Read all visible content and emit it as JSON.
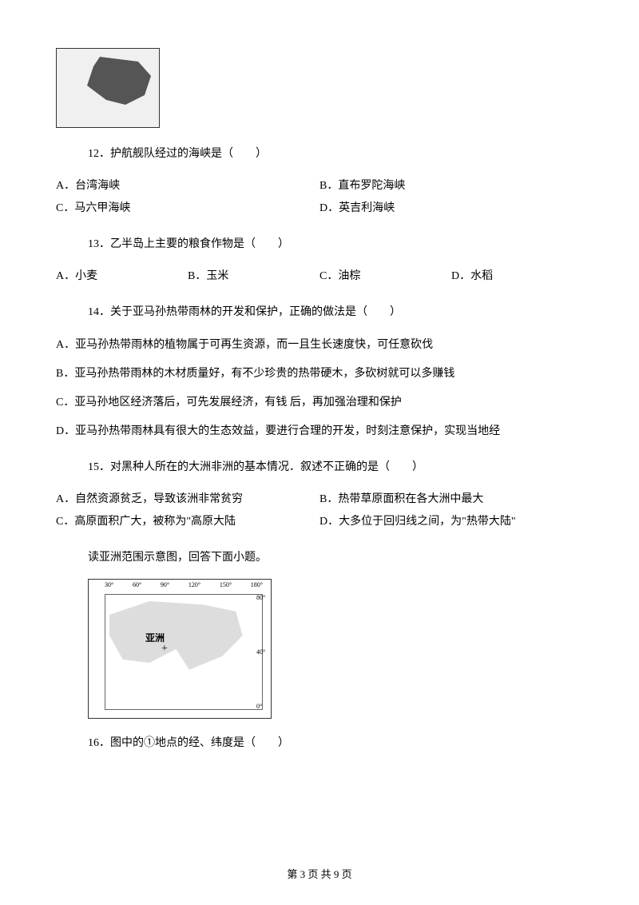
{
  "map1_alt": "护航舰队路线图",
  "q12": {
    "text": "12．护航舰队经过的海峡是（　　）",
    "a": "A．台湾海峡",
    "b": "B．直布罗陀海峡",
    "c": "C．马六甲海峡",
    "d": "D．英吉利海峡"
  },
  "q13": {
    "text": "13．乙半岛上主要的粮食作物是（　　）",
    "a": "A．小麦",
    "b": "B．玉米",
    "c": "C．油棕",
    "d": "D．水稻"
  },
  "q14": {
    "text": "14．关于亚马孙热带雨林的开发和保护，正确的做法是（　　）",
    "a": "A．亚马孙热带雨林的植物属于可再生资源，而一且生长速度快，可任意砍伐",
    "b": "B．亚马孙热带雨林的木材质量好，有不少珍贵的热带硬木，多砍树就可以多赚钱",
    "c": "C．亚马孙地区经济落后，可先发展经济，有钱 后，再加强治理和保护",
    "d": "D．亚马孙热带雨林具有很大的生态效益，要进行合理的开发，时刻注意保护，实现当地经"
  },
  "q15": {
    "text": "15．对黑种人所在的大洲非洲的基本情况．叙述不正确的是（　　）",
    "a": "A．自然资源贫乏，导致该洲非常贫穷",
    "b": "B．热带草原面积在各大洲中最大",
    "c": "C．高原面积广大，被称为\"高原大陆",
    "d": "D．大多位于回归线之间，为\"热带大陆\""
  },
  "reading_note": "读亚洲范围示意图，回答下面小题。",
  "asia_map": {
    "label": "亚洲",
    "top_coords": [
      "30°",
      "60°",
      "90°",
      "120°",
      "150°",
      "180°"
    ],
    "right_coords": [
      "80°",
      "40°",
      "0°"
    ]
  },
  "q16": {
    "text": "16．图中的①地点的经、纬度是（　　）"
  },
  "footer": "第 3 页 共 9 页"
}
